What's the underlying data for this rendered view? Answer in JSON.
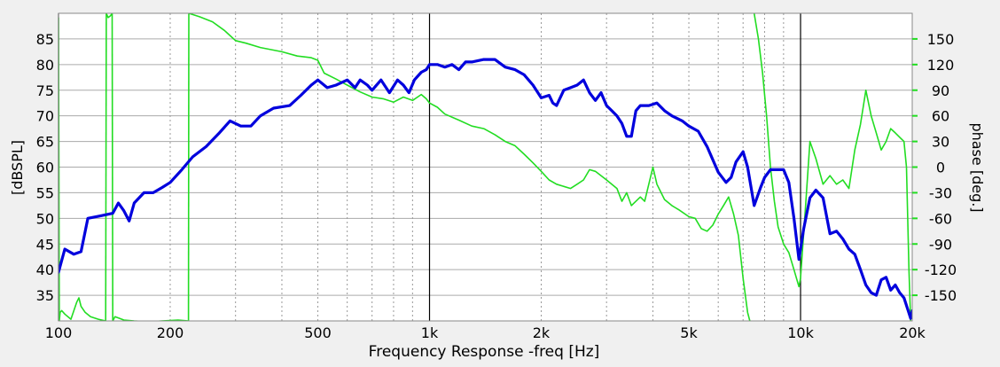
{
  "chart_data": {
    "type": "line",
    "title": "",
    "xlabel": "Frequency Response -freq [Hz]",
    "ylabel": "[dBSPL]",
    "y2label": "phase [deg.]",
    "x_scale": "log",
    "xlim": [
      100,
      20000
    ],
    "ylim": [
      30,
      90
    ],
    "y2lim": [
      -180,
      180
    ],
    "x_ticks": [
      {
        "value": 100,
        "label": "100"
      },
      {
        "value": 200,
        "label": "200"
      },
      {
        "value": 500,
        "label": "500"
      },
      {
        "value": 1000,
        "label": "1k"
      },
      {
        "value": 2000,
        "label": "2k"
      },
      {
        "value": 5000,
        "label": "5k"
      },
      {
        "value": 10000,
        "label": "10k"
      },
      {
        "value": 20000,
        "label": "20k"
      }
    ],
    "y_ticks": [
      35,
      40,
      45,
      50,
      55,
      60,
      65,
      70,
      75,
      80,
      85
    ],
    "y2_ticks": [
      -150,
      -120,
      -90,
      -60,
      -30,
      0,
      30,
      60,
      90,
      120,
      150
    ],
    "grid": true,
    "colors": {
      "spl": "#0000dd",
      "phase": "#22dd22",
      "background": "#ffffff",
      "frame": "#f0f0f0"
    },
    "series": [
      {
        "axis": "left",
        "points": [
          [
            100,
            39.5
          ],
          [
            104,
            44
          ],
          [
            110,
            43
          ],
          [
            115,
            43.5
          ],
          [
            120,
            50
          ],
          [
            130,
            50.5
          ],
          [
            140,
            51
          ],
          [
            145,
            53
          ],
          [
            150,
            51.5
          ],
          [
            155,
            49.5
          ],
          [
            160,
            53
          ],
          [
            170,
            55
          ],
          [
            180,
            55
          ],
          [
            190,
            56
          ],
          [
            200,
            57
          ],
          [
            215,
            59.5
          ],
          [
            230,
            62
          ],
          [
            250,
            64
          ],
          [
            270,
            66.5
          ],
          [
            290,
            69
          ],
          [
            310,
            68
          ],
          [
            330,
            68
          ],
          [
            350,
            70
          ],
          [
            380,
            71.5
          ],
          [
            420,
            72
          ],
          [
            450,
            74
          ],
          [
            480,
            76
          ],
          [
            500,
            77
          ],
          [
            530,
            75.5
          ],
          [
            560,
            76
          ],
          [
            600,
            77
          ],
          [
            630,
            75.5
          ],
          [
            650,
            77
          ],
          [
            680,
            76
          ],
          [
            700,
            75
          ],
          [
            740,
            77
          ],
          [
            780,
            74.5
          ],
          [
            820,
            77
          ],
          [
            850,
            76
          ],
          [
            880,
            74.5
          ],
          [
            910,
            77
          ],
          [
            950,
            78.5
          ],
          [
            980,
            79
          ],
          [
            1000,
            80
          ],
          [
            1050,
            80
          ],
          [
            1100,
            79.5
          ],
          [
            1150,
            80
          ],
          [
            1200,
            79
          ],
          [
            1250,
            80.5
          ],
          [
            1300,
            80.5
          ],
          [
            1400,
            81
          ],
          [
            1500,
            81
          ],
          [
            1600,
            79.5
          ],
          [
            1700,
            79
          ],
          [
            1800,
            78
          ],
          [
            1900,
            76
          ],
          [
            2000,
            73.5
          ],
          [
            2100,
            74
          ],
          [
            2150,
            72.5
          ],
          [
            2200,
            72
          ],
          [
            2300,
            75
          ],
          [
            2400,
            75.5
          ],
          [
            2500,
            76
          ],
          [
            2600,
            77
          ],
          [
            2700,
            74.5
          ],
          [
            2800,
            73
          ],
          [
            2900,
            74.5
          ],
          [
            3000,
            72
          ],
          [
            3100,
            71
          ],
          [
            3200,
            70
          ],
          [
            3300,
            68.5
          ],
          [
            3400,
            66
          ],
          [
            3500,
            66
          ],
          [
            3600,
            71
          ],
          [
            3700,
            72
          ],
          [
            3900,
            72
          ],
          [
            4100,
            72.5
          ],
          [
            4300,
            71
          ],
          [
            4500,
            70
          ],
          [
            4800,
            69
          ],
          [
            5000,
            68
          ],
          [
            5300,
            67
          ],
          [
            5600,
            64
          ],
          [
            6000,
            59
          ],
          [
            6300,
            57
          ],
          [
            6500,
            58
          ],
          [
            6700,
            61
          ],
          [
            7000,
            63
          ],
          [
            7200,
            60
          ],
          [
            7500,
            52.5
          ],
          [
            7800,
            56
          ],
          [
            8000,
            58
          ],
          [
            8300,
            59.5
          ],
          [
            8700,
            59.5
          ],
          [
            9000,
            59.5
          ],
          [
            9300,
            57
          ],
          [
            9600,
            50
          ],
          [
            9900,
            42
          ],
          [
            10200,
            48
          ],
          [
            10600,
            54
          ],
          [
            11000,
            55.5
          ],
          [
            11500,
            54
          ],
          [
            12000,
            47
          ],
          [
            12500,
            47.5
          ],
          [
            13000,
            46
          ],
          [
            13500,
            44
          ],
          [
            14000,
            43
          ],
          [
            14500,
            40
          ],
          [
            15000,
            37
          ],
          [
            15500,
            35.5
          ],
          [
            16000,
            35
          ],
          [
            16500,
            38
          ],
          [
            17000,
            38.5
          ],
          [
            17500,
            36
          ],
          [
            18000,
            37
          ],
          [
            18500,
            35.5
          ],
          [
            19000,
            34.5
          ],
          [
            19500,
            32
          ],
          [
            19800,
            30.5
          ],
          [
            20000,
            32
          ]
        ]
      },
      {
        "axis": "right",
        "segments": [
          [
            [
              100,
              175
            ],
            [
              100.5,
              -180
            ],
            [
              101,
              -170
            ],
            [
              102,
              -168
            ],
            [
              104,
              -172
            ],
            [
              108,
              -178
            ],
            [
              112,
              -158
            ],
            [
              113.5,
              -153
            ],
            [
              115,
              -163
            ],
            [
              118,
              -170
            ],
            [
              122,
              -175
            ],
            [
              128,
              -178
            ],
            [
              134,
              -180
            ]
          ],
          [
            [
              134,
              -180
            ],
            [
              134.5,
              180
            ]
          ],
          [
            [
              134.5,
              180
            ],
            [
              136,
              175
            ],
            [
              138,
              177
            ],
            [
              139.5,
              180
            ]
          ],
          [
            [
              139.5,
              180
            ],
            [
              140,
              -180
            ]
          ],
          [
            [
              140,
              -180
            ],
            [
              142,
              -175
            ],
            [
              146,
              -177
            ],
            [
              150,
              -179
            ],
            [
              160,
              -180
            ],
            [
              175,
              -181
            ],
            [
              190,
              -180
            ],
            [
              210,
              -179
            ],
            [
              224,
              -180
            ]
          ],
          [
            [
              224,
              -180
            ],
            [
              224.5,
              180
            ]
          ],
          [
            [
              224.5,
              180
            ],
            [
              240,
              176
            ],
            [
              260,
              170
            ],
            [
              280,
              160
            ],
            [
              300,
              148
            ],
            [
              320,
              145
            ],
            [
              350,
              140
            ],
            [
              400,
              135
            ],
            [
              440,
              130
            ],
            [
              480,
              128
            ],
            [
              500,
              125
            ],
            [
              520,
              110
            ],
            [
              560,
              103
            ],
            [
              600,
              96
            ],
            [
              650,
              88
            ],
            [
              700,
              82
            ],
            [
              750,
              80
            ],
            [
              800,
              76
            ],
            [
              850,
              82
            ],
            [
              900,
              78
            ],
            [
              950,
              85
            ],
            [
              980,
              80
            ],
            [
              1000,
              75
            ],
            [
              1050,
              70
            ],
            [
              1100,
              62
            ],
            [
              1200,
              55
            ],
            [
              1300,
              48
            ],
            [
              1400,
              45
            ],
            [
              1500,
              38
            ],
            [
              1600,
              30
            ],
            [
              1700,
              25
            ],
            [
              1800,
              15
            ],
            [
              1900,
              5
            ],
            [
              2000,
              -5
            ],
            [
              2100,
              -15
            ],
            [
              2200,
              -20
            ],
            [
              2400,
              -25
            ],
            [
              2500,
              -20
            ],
            [
              2600,
              -15
            ],
            [
              2700,
              -3
            ],
            [
              2800,
              -5
            ],
            [
              3000,
              -15
            ],
            [
              3200,
              -25
            ],
            [
              3300,
              -40
            ],
            [
              3400,
              -30
            ],
            [
              3500,
              -45
            ],
            [
              3700,
              -35
            ],
            [
              3800,
              -40
            ],
            [
              4000,
              0
            ],
            [
              4100,
              -20
            ],
            [
              4300,
              -38
            ],
            [
              4500,
              -45
            ],
            [
              4700,
              -50
            ],
            [
              5000,
              -58
            ],
            [
              5200,
              -60
            ],
            [
              5400,
              -72
            ],
            [
              5600,
              -75
            ],
            [
              5800,
              -68
            ],
            [
              6000,
              -55
            ],
            [
              6200,
              -45
            ],
            [
              6400,
              -35
            ],
            [
              6600,
              -55
            ],
            [
              6800,
              -80
            ],
            [
              7000,
              -130
            ],
            [
              7200,
              -170
            ],
            [
              7300,
              -180
            ]
          ],
          [
            [
              7500,
              180
            ],
            [
              7700,
              150
            ],
            [
              7900,
              110
            ],
            [
              8100,
              60
            ],
            [
              8300,
              0
            ],
            [
              8500,
              -40
            ],
            [
              8700,
              -70
            ],
            [
              9000,
              -90
            ],
            [
              9300,
              -100
            ],
            [
              9600,
              -120
            ],
            [
              9900,
              -140
            ],
            [
              10000,
              -130
            ],
            [
              10300,
              -50
            ],
            [
              10600,
              30
            ],
            [
              11000,
              10
            ],
            [
              11500,
              -20
            ],
            [
              12000,
              -10
            ],
            [
              12500,
              -20
            ],
            [
              13000,
              -15
            ],
            [
              13500,
              -25
            ],
            [
              14000,
              20
            ],
            [
              14500,
              50
            ],
            [
              15000,
              90
            ],
            [
              15500,
              60
            ],
            [
              16000,
              40
            ],
            [
              16500,
              20
            ],
            [
              17000,
              30
            ],
            [
              17500,
              45
            ],
            [
              18000,
              40
            ],
            [
              18500,
              35
            ],
            [
              19000,
              30
            ],
            [
              19300,
              0
            ],
            [
              19600,
              -120
            ],
            [
              19800,
              -180
            ]
          ]
        ]
      }
    ]
  }
}
